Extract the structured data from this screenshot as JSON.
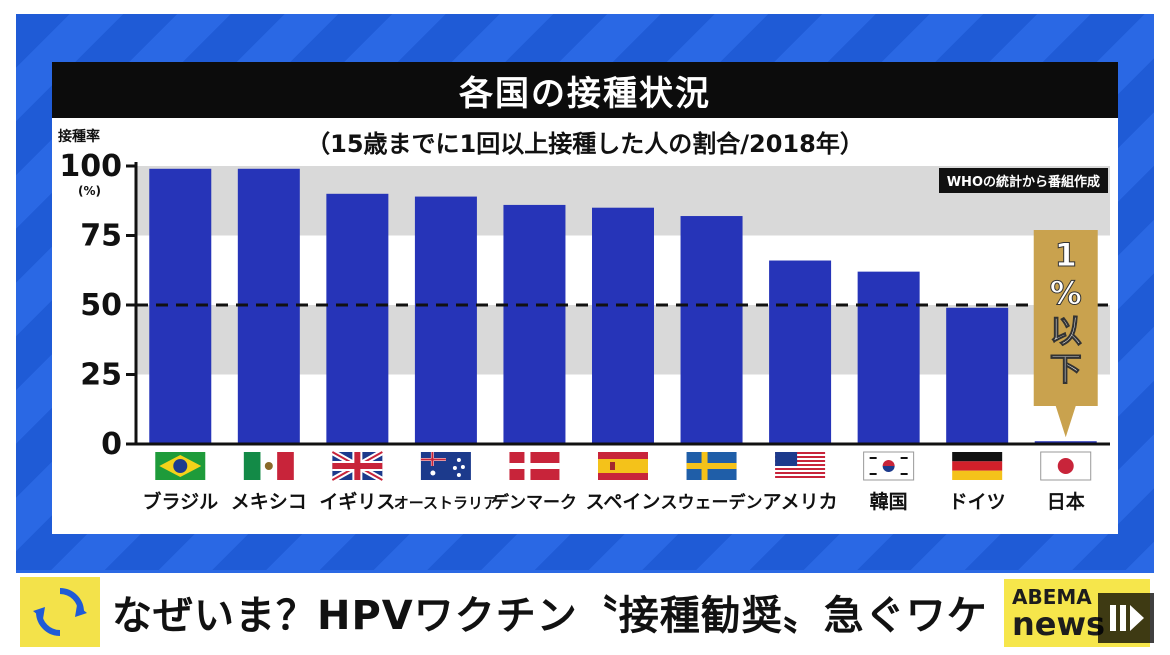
{
  "ticker": {
    "text": "なぜいま？HPVワクチン〝接種勧奨〟急ぐワケ"
  },
  "logo": {
    "top": "ABEMA",
    "bottom": "news"
  },
  "chart_data": {
    "type": "bar",
    "title": "各国の接種状況",
    "subtitle": "（15歳までに1回以上接種した人の割合/2018年）",
    "ylabel": "接種率",
    "yunit": "(%)",
    "source": "WHOの統計から番組作成",
    "ylim": [
      0,
      100
    ],
    "yticks": [
      0,
      25,
      50,
      75,
      100
    ],
    "reference_line": 50,
    "grid": "alternating bands",
    "categories": [
      "ブラジル",
      "メキシコ",
      "イギリス",
      "オーストラリア",
      "デンマーク",
      "スペイン",
      "スウェーデン",
      "アメリカ",
      "韓国",
      "ドイツ",
      "日本"
    ],
    "values": [
      99,
      99,
      90,
      89,
      86,
      85,
      82,
      66,
      62,
      49,
      1
    ],
    "annotation": {
      "category": "日本",
      "lines": [
        "1",
        "%",
        "以",
        "下"
      ],
      "color": "#c9a24e"
    },
    "colors": {
      "bar": "#2634b8",
      "band": "#d9d9d9",
      "axis": "#111111"
    },
    "flags": [
      "brazil",
      "mexico",
      "uk",
      "australia",
      "denmark",
      "spain",
      "sweden",
      "usa",
      "korea",
      "germany",
      "japan"
    ]
  }
}
